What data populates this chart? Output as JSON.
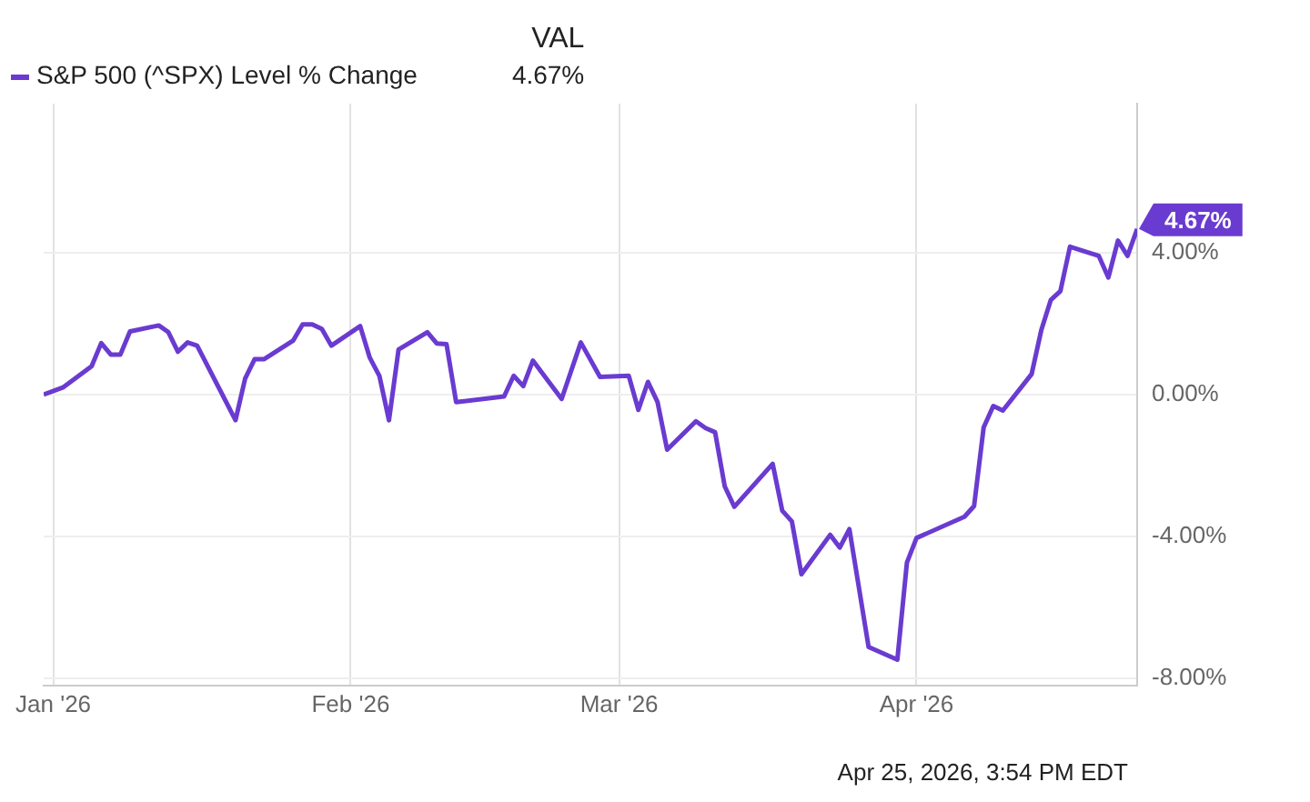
{
  "chart_data": {
    "type": "line",
    "legend": "top left",
    "legend_title": "VAL",
    "annotations": [
      "Apr 25, 2026, 3:54 PM EDT"
    ],
    "xlim": [
      "2025-12-31",
      "2026-04-24"
    ],
    "xticks": [
      {
        "value": "2026-01-01",
        "label": "Jan '26"
      },
      {
        "value": "2026-02-01",
        "label": "Feb '26"
      },
      {
        "value": "2026-03-01",
        "label": "Mar '26"
      },
      {
        "value": "2026-04-01",
        "label": "Apr '26"
      }
    ],
    "ylim": [
      -8.2,
      8.2
    ],
    "yticks": [
      {
        "value": -8,
        "label": "-8.00%"
      },
      {
        "value": -4,
        "label": "-4.00%"
      },
      {
        "value": 0,
        "label": "0.00%"
      },
      {
        "value": 4,
        "label": "4.00%"
      }
    ],
    "grid": true,
    "marker": "none",
    "line_style": "solid",
    "x": [
      "2025-12-31",
      "2026-01-02",
      "2026-01-05",
      "2026-01-06",
      "2026-01-07",
      "2026-01-08",
      "2026-01-09",
      "2026-01-12",
      "2026-01-13",
      "2026-01-14",
      "2026-01-15",
      "2026-01-16",
      "2026-01-20",
      "2026-01-21",
      "2026-01-22",
      "2026-01-23",
      "2026-01-26",
      "2026-01-27",
      "2026-01-28",
      "2026-01-29",
      "2026-01-30",
      "2026-02-02",
      "2026-02-03",
      "2026-02-04",
      "2026-02-05",
      "2026-02-06",
      "2026-02-09",
      "2026-02-10",
      "2026-02-11",
      "2026-02-12",
      "2026-02-17",
      "2026-02-18",
      "2026-02-19",
      "2026-02-20",
      "2026-02-23",
      "2026-02-25",
      "2026-02-27",
      "2026-03-02",
      "2026-03-03",
      "2026-03-04",
      "2026-03-05",
      "2026-03-06",
      "2026-03-09",
      "2026-03-10",
      "2026-03-11",
      "2026-03-12",
      "2026-03-13",
      "2026-03-17",
      "2026-03-18",
      "2026-03-19",
      "2026-03-20",
      "2026-03-23",
      "2026-03-24",
      "2026-03-25",
      "2026-03-27",
      "2026-03-30",
      "2026-03-31",
      "2026-04-01",
      "2026-04-06",
      "2026-04-07",
      "2026-04-08",
      "2026-04-09",
      "2026-04-10",
      "2026-04-13",
      "2026-04-14",
      "2026-04-15",
      "2026-04-16",
      "2026-04-17",
      "2026-04-20",
      "2026-04-21",
      "2026-04-22",
      "2026-04-23",
      "2026-04-24"
    ],
    "series": [
      {
        "name": "S&P 500 (^SPX) Level % Change",
        "color": "#6a3bd0",
        "values": [
          0,
          0.2,
          0.8,
          1.45,
          1.13,
          1.13,
          1.78,
          1.95,
          1.76,
          1.21,
          1.47,
          1.38,
          -0.72,
          0.45,
          1.0,
          1.0,
          1.52,
          1.98,
          1.98,
          1.85,
          1.38,
          1.93,
          1.04,
          0.53,
          -0.72,
          1.27,
          1.76,
          1.44,
          1.42,
          -0.21,
          -0.05,
          0.53,
          0.24,
          0.96,
          -0.12,
          1.47,
          0.5,
          0.53,
          -0.43,
          0.36,
          -0.21,
          -1.55,
          -0.75,
          -0.94,
          -1.06,
          -2.58,
          -3.16,
          -1.95,
          -3.27,
          -3.57,
          -5.06,
          -3.95,
          -4.31,
          -3.79,
          -7.11,
          -7.47,
          -4.73,
          -4.04,
          -3.44,
          -3.14,
          -0.92,
          -0.32,
          -0.45,
          0.58,
          1.81,
          2.67,
          2.92,
          4.17,
          3.91,
          3.3,
          4.34,
          3.91,
          4.67
        ],
        "value_labels": [
          null,
          null,
          null,
          null,
          null,
          null,
          null,
          null,
          null,
          null,
          null,
          null,
          null,
          null,
          null,
          null,
          null,
          null,
          null,
          null,
          null,
          null,
          null,
          null,
          null,
          null,
          null,
          null,
          null,
          null,
          null,
          null,
          null,
          null,
          null,
          null,
          null,
          null,
          null,
          null,
          null,
          null,
          null,
          null,
          null,
          null,
          null,
          null,
          null,
          null,
          null,
          null,
          null,
          null,
          null,
          null,
          null,
          null,
          null,
          null,
          null,
          null,
          null,
          null,
          null,
          null,
          null,
          null,
          null,
          null,
          null,
          null,
          "4.67%"
        ]
      }
    ]
  }
}
